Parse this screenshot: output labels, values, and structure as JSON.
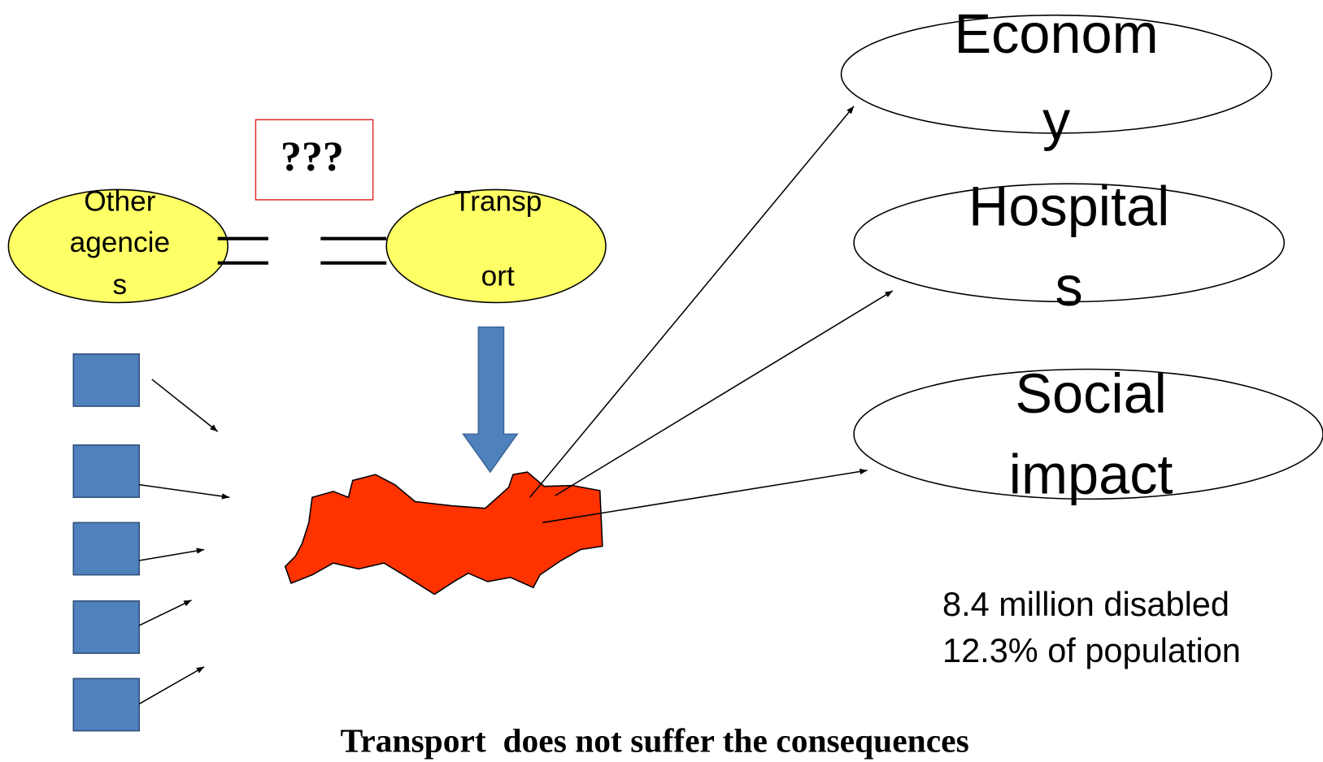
{
  "agencies": {
    "lines": [
      "Other",
      "agencie",
      "s"
    ]
  },
  "transport": {
    "lines": [
      "Transp",
      "ort"
    ]
  },
  "question": "???",
  "outcomes": [
    {
      "lines": [
        "Econom",
        "y"
      ]
    },
    {
      "lines": [
        "Hospital",
        "s"
      ]
    },
    {
      "lines": [
        "Social",
        "impact"
      ]
    }
  ],
  "note": {
    "lines": [
      "8.4 million disabled",
      "12.3% of population"
    ]
  },
  "caption": "Transport  does not suffer the consequences"
}
